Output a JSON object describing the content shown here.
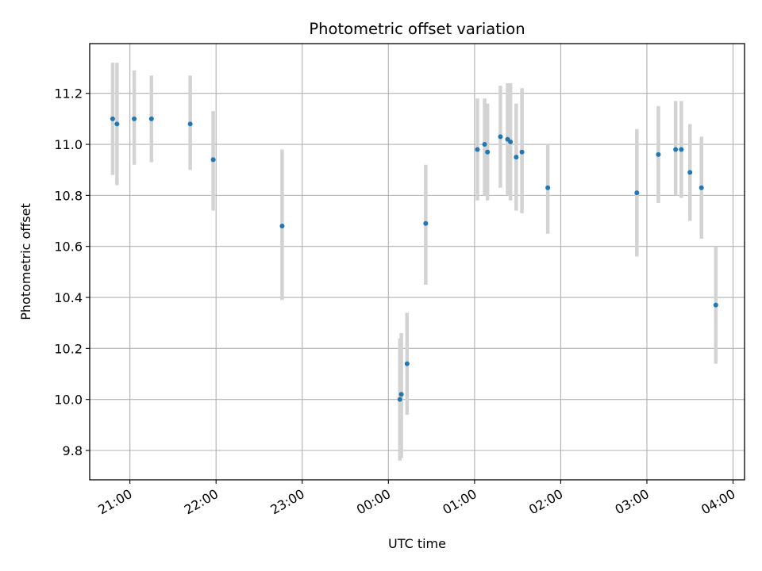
{
  "chart_data": {
    "type": "scatter",
    "title": "Photometric offset variation",
    "xlabel": "UTC time",
    "ylabel": "Photometric offset",
    "grid": true,
    "colors": {
      "point": "#1f77b4",
      "errorbar": "#d3d3d3",
      "grid": "#b0b0b0"
    },
    "x_unit": "UTC time (HH:MM), times past midnight belong to the following day",
    "xlim": [
      "20:32",
      "04:08"
    ],
    "ylim": [
      9.685,
      11.395
    ],
    "x_ticks": [
      "21:00",
      "22:00",
      "23:00",
      "00:00",
      "01:00",
      "02:00",
      "03:00",
      "04:00"
    ],
    "y_ticks": [
      "9.8",
      "10.0",
      "10.2",
      "10.4",
      "10.6",
      "10.8",
      "11.0",
      "11.2"
    ],
    "series": [
      {
        "points": [
          {
            "x": "20:48",
            "y": 11.1,
            "lo": 10.88,
            "hi": 11.32
          },
          {
            "x": "20:51",
            "y": 11.08,
            "lo": 10.84,
            "hi": 11.32
          },
          {
            "x": "21:03",
            "y": 11.1,
            "lo": 10.92,
            "hi": 11.29
          },
          {
            "x": "21:15",
            "y": 11.1,
            "lo": 10.93,
            "hi": 11.27
          },
          {
            "x": "21:42",
            "y": 11.08,
            "lo": 10.9,
            "hi": 11.27
          },
          {
            "x": "21:58",
            "y": 10.94,
            "lo": 10.74,
            "hi": 11.13
          },
          {
            "x": "22:46",
            "y": 10.68,
            "lo": 10.39,
            "hi": 10.98
          },
          {
            "x": "00:08",
            "y": 10.0,
            "lo": 9.76,
            "hi": 10.24
          },
          {
            "x": "00:09",
            "y": 10.02,
            "lo": 9.77,
            "hi": 10.26
          },
          {
            "x": "00:13",
            "y": 10.14,
            "lo": 9.94,
            "hi": 10.34
          },
          {
            "x": "00:26",
            "y": 10.69,
            "lo": 10.45,
            "hi": 10.92
          },
          {
            "x": "01:02",
            "y": 10.98,
            "lo": 10.78,
            "hi": 11.18
          },
          {
            "x": "01:07",
            "y": 11.0,
            "lo": 10.8,
            "hi": 11.18
          },
          {
            "x": "01:09",
            "y": 10.97,
            "lo": 10.78,
            "hi": 11.16
          },
          {
            "x": "01:18",
            "y": 11.03,
            "lo": 10.83,
            "hi": 11.23
          },
          {
            "x": "01:23",
            "y": 11.02,
            "lo": 10.8,
            "hi": 11.24
          },
          {
            "x": "01:25",
            "y": 11.01,
            "lo": 10.78,
            "hi": 11.24
          },
          {
            "x": "01:29",
            "y": 10.95,
            "lo": 10.74,
            "hi": 11.16
          },
          {
            "x": "01:33",
            "y": 10.97,
            "lo": 10.73,
            "hi": 11.22
          },
          {
            "x": "01:51",
            "y": 10.83,
            "lo": 10.65,
            "hi": 11.0
          },
          {
            "x": "02:53",
            "y": 10.81,
            "lo": 10.56,
            "hi": 11.06
          },
          {
            "x": "03:08",
            "y": 10.96,
            "lo": 10.77,
            "hi": 11.15
          },
          {
            "x": "03:20",
            "y": 10.98,
            "lo": 10.8,
            "hi": 11.17
          },
          {
            "x": "03:24",
            "y": 10.98,
            "lo": 10.79,
            "hi": 11.17
          },
          {
            "x": "03:30",
            "y": 10.89,
            "lo": 10.7,
            "hi": 11.08
          },
          {
            "x": "03:38",
            "y": 10.83,
            "lo": 10.63,
            "hi": 11.03
          },
          {
            "x": "03:48",
            "y": 10.37,
            "lo": 10.14,
            "hi": 10.6
          }
        ]
      }
    ]
  }
}
